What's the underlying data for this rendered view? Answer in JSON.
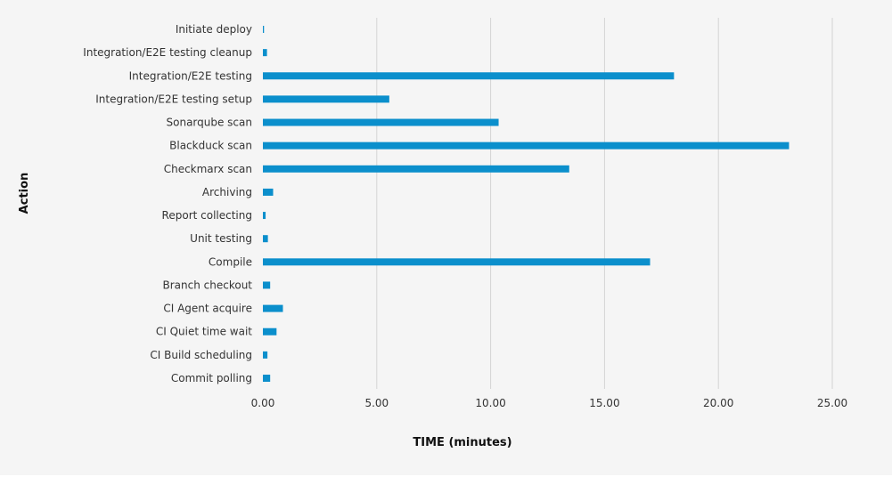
{
  "chart_data": {
    "type": "bar",
    "orientation": "horizontal",
    "categories": [
      "Initiate deploy",
      "Integration/E2E testing cleanup",
      "Integration/E2E testing",
      "Integration/E2E testing setup",
      "Sonarqube scan",
      "Blackduck scan",
      "Checkmarx scan",
      "Archiving",
      "Report collecting",
      "Unit testing",
      "Compile",
      "Branch checkout",
      "CI Agent acquire",
      "CI Quiet time wait",
      "CI Build scheduling",
      "Commit polling"
    ],
    "values": [
      0.05,
      0.18,
      18.05,
      5.55,
      10.35,
      23.1,
      13.45,
      0.45,
      0.12,
      0.22,
      17.0,
      0.32,
      0.88,
      0.6,
      0.2,
      0.32
    ],
    "xlabel": "TIME (minutes)",
    "ylabel": "Action",
    "xlim": [
      0,
      25
    ],
    "xticks": [
      0,
      5,
      10,
      15,
      20,
      25
    ],
    "tick_labels": [
      "0.00",
      "5.00",
      "10.00",
      "15.00",
      "20.00",
      "25.00"
    ],
    "grid": "vertical",
    "legend": "none",
    "colors": {
      "bar": "#0b8fcc",
      "grid": "#d4d4d4",
      "background": "#f5f5f5"
    }
  }
}
